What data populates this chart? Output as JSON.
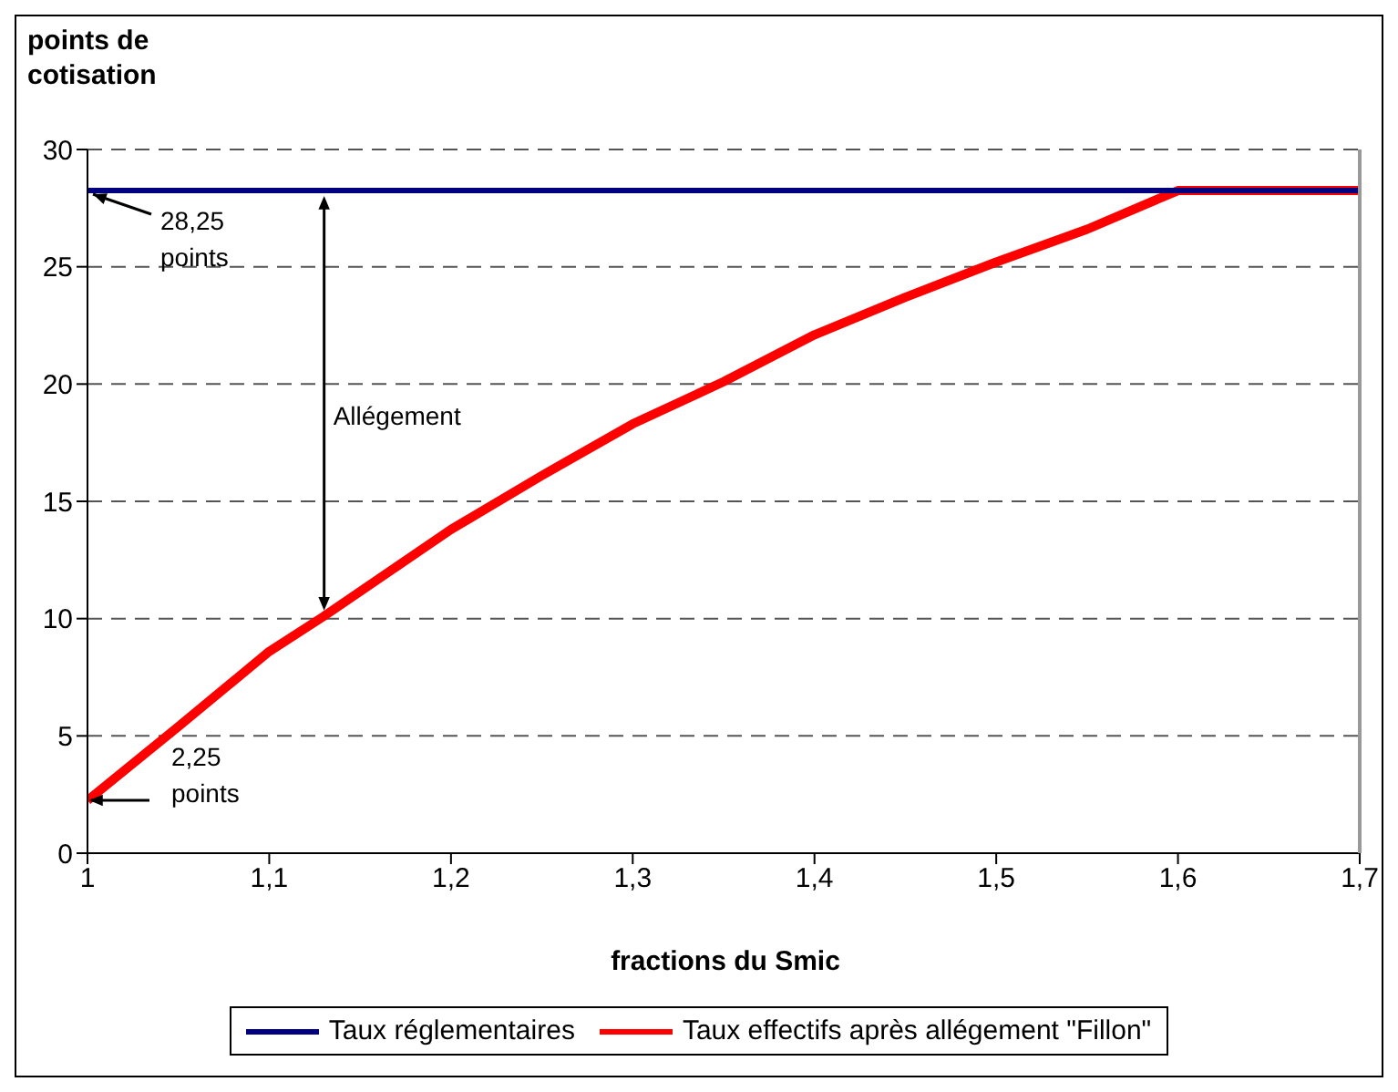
{
  "chart_data": {
    "type": "line",
    "xlabel": "fractions du Smic",
    "ylabel": "points de cotisation",
    "xlim": [
      1,
      1.7
    ],
    "xticks": [
      {
        "value": 1,
        "label": "1"
      },
      {
        "value": 1.1,
        "label": "1,1"
      },
      {
        "value": 1.2,
        "label": "1,2"
      },
      {
        "value": 1.3,
        "label": "1,3"
      },
      {
        "value": 1.4,
        "label": "1,4"
      },
      {
        "value": 1.5,
        "label": "1,5"
      },
      {
        "value": 1.6,
        "label": "1,6"
      },
      {
        "value": 1.7,
        "label": "1,7"
      }
    ],
    "ylim": [
      0,
      30
    ],
    "yticks": [
      0,
      5,
      10,
      15,
      20,
      25,
      30
    ],
    "grid": "y",
    "legend": "bottom",
    "marker": "none",
    "line_style": "solid",
    "series": [
      {
        "name": "Taux réglementaires",
        "color": "#000080",
        "x": [
          1,
          1.7
        ],
        "values": [
          28.25,
          28.25
        ]
      },
      {
        "name": "Taux effectifs après allégement \"Fillon\"",
        "color": "#ff0000",
        "x": [
          1,
          1.05,
          1.1,
          1.13,
          1.2,
          1.25,
          1.3,
          1.35,
          1.4,
          1.45,
          1.5,
          1.55,
          1.6,
          1.7
        ],
        "values": [
          2.25,
          5.4,
          8.6,
          10.1,
          13.8,
          16.1,
          18.3,
          20.1,
          22.1,
          23.7,
          25.2,
          26.6,
          28.25,
          28.25
        ]
      }
    ],
    "annotations": [
      "28,25 points",
      "2,25 points",
      "Allégement"
    ]
  }
}
